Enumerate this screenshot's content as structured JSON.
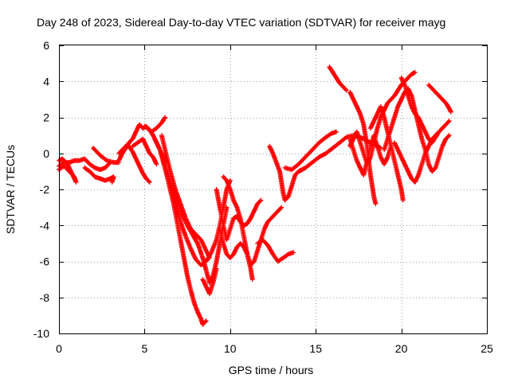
{
  "chart_data": {
    "type": "scatter",
    "title": "Day 248 of 2023, Sidereal Day-to-day VTEC variation (SDTVAR) for receiver mayg",
    "xlabel": "GPS time / hours",
    "ylabel": "SDTVAR / TECUs",
    "xlim": [
      0,
      25
    ],
    "ylim": [
      -10,
      6
    ],
    "xticks": [
      0,
      5,
      10,
      15,
      20,
      25
    ],
    "yticks": [
      -10,
      -8,
      -6,
      -4,
      -2,
      0,
      2,
      4,
      6
    ],
    "grid": true,
    "legend": "none",
    "marker": "plus",
    "color": "#ff0000",
    "tracks": [
      [
        [
          0.0,
          -0.7
        ],
        [
          0.3,
          -0.5
        ],
        [
          0.6,
          -0.5
        ],
        [
          0.9,
          -0.4
        ],
        [
          1.2,
          -0.4
        ],
        [
          1.5,
          -0.3
        ],
        [
          1.8,
          -0.6
        ],
        [
          2.1,
          -0.8
        ],
        [
          2.4,
          -0.9
        ],
        [
          2.7,
          -0.8
        ],
        [
          3.0,
          -0.5
        ]
      ],
      [
        [
          0.0,
          -0.9
        ],
        [
          0.3,
          -0.7
        ],
        [
          0.6,
          -1.0
        ],
        [
          0.9,
          -1.3
        ],
        [
          1.0,
          -1.6
        ],
        [
          0.8,
          -1.2
        ],
        [
          0.5,
          -0.6
        ],
        [
          0.2,
          -0.3
        ],
        [
          0.0,
          -0.4
        ]
      ],
      [
        [
          1.5,
          -0.8
        ],
        [
          1.8,
          -1.0
        ],
        [
          2.1,
          -1.3
        ],
        [
          2.4,
          -1.4
        ],
        [
          2.7,
          -1.5
        ],
        [
          3.0,
          -1.4
        ],
        [
          3.2,
          -1.3
        ],
        [
          3.1,
          -1.6
        ]
      ],
      [
        [
          2.0,
          0.3
        ],
        [
          2.4,
          -0.1
        ],
        [
          2.8,
          -0.4
        ],
        [
          3.2,
          -0.5
        ],
        [
          3.5,
          -0.5
        ]
      ],
      [
        [
          3.5,
          -0.4
        ],
        [
          3.7,
          0.0
        ],
        [
          3.9,
          0.3
        ],
        [
          4.1,
          0.6
        ],
        [
          4.3,
          0.8
        ],
        [
          4.5,
          1.2
        ],
        [
          4.7,
          1.6
        ],
        [
          4.9,
          1.4
        ],
        [
          5.1,
          1.5
        ],
        [
          5.4,
          1.2
        ],
        [
          5.7,
          1.4
        ],
        [
          6.0,
          1.7
        ],
        [
          6.2,
          2.0
        ]
      ],
      [
        [
          3.5,
          0.0
        ],
        [
          3.8,
          0.3
        ],
        [
          4.0,
          0.5
        ],
        [
          4.3,
          0.1
        ],
        [
          4.5,
          -0.3
        ],
        [
          4.7,
          -0.7
        ],
        [
          4.9,
          -1.1
        ],
        [
          5.1,
          -1.4
        ],
        [
          5.3,
          -1.6
        ]
      ],
      [
        [
          4.3,
          0.4
        ],
        [
          4.6,
          0.6
        ],
        [
          4.9,
          0.8
        ],
        [
          5.1,
          0.4
        ],
        [
          5.3,
          0.0
        ],
        [
          5.5,
          -0.2
        ],
        [
          5.7,
          -0.6
        ]
      ],
      [
        [
          5.0,
          1.5
        ],
        [
          5.3,
          1.3
        ],
        [
          5.5,
          1.0
        ],
        [
          5.7,
          0.6
        ],
        [
          5.9,
          0.2
        ],
        [
          6.1,
          -0.5
        ],
        [
          6.3,
          -1.2
        ],
        [
          6.5,
          -2.0
        ],
        [
          6.7,
          -2.8
        ],
        [
          6.9,
          -3.8
        ],
        [
          7.1,
          -4.8
        ],
        [
          7.3,
          -5.8
        ],
        [
          7.5,
          -6.8
        ],
        [
          7.7,
          -7.6
        ],
        [
          7.9,
          -8.3
        ],
        [
          8.1,
          -8.8
        ],
        [
          8.3,
          -9.2
        ],
        [
          8.4,
          -9.5
        ],
        [
          8.6,
          -9.3
        ]
      ],
      [
        [
          5.6,
          0.8
        ],
        [
          5.9,
          0.2
        ],
        [
          6.2,
          -0.6
        ],
        [
          6.5,
          -1.6
        ],
        [
          6.8,
          -2.7
        ],
        [
          7.1,
          -3.8
        ],
        [
          7.4,
          -4.6
        ],
        [
          7.7,
          -5.3
        ],
        [
          8.0,
          -5.9
        ],
        [
          8.3,
          -6.2
        ],
        [
          8.6,
          -6.0
        ],
        [
          8.9,
          -5.5
        ],
        [
          9.2,
          -4.8
        ],
        [
          9.4,
          -4.0
        ],
        [
          9.6,
          -3.0
        ],
        [
          9.8,
          -2.0
        ],
        [
          10.0,
          -1.5
        ]
      ],
      [
        [
          6.0,
          1.0
        ],
        [
          6.3,
          -0.2
        ],
        [
          6.6,
          -1.4
        ],
        [
          6.9,
          -2.6
        ],
        [
          7.2,
          -3.4
        ],
        [
          7.5,
          -4.0
        ],
        [
          7.8,
          -4.5
        ],
        [
          8.1,
          -5.0
        ],
        [
          8.4,
          -5.8
        ],
        [
          8.6,
          -6.5
        ],
        [
          8.8,
          -7.2
        ],
        [
          9.0,
          -6.8
        ],
        [
          9.2,
          -6.0
        ],
        [
          9.4,
          -5.0
        ],
        [
          9.6,
          -4.0
        ],
        [
          9.8,
          -3.0
        ]
      ],
      [
        [
          6.2,
          0.0
        ],
        [
          6.5,
          -1.0
        ],
        [
          6.8,
          -2.0
        ],
        [
          7.1,
          -2.8
        ],
        [
          7.4,
          -3.6
        ],
        [
          7.7,
          -4.2
        ],
        [
          8.0,
          -4.5
        ],
        [
          8.3,
          -4.8
        ],
        [
          8.6,
          -5.4
        ],
        [
          8.8,
          -5.8
        ]
      ],
      [
        [
          8.4,
          -7.0
        ],
        [
          8.6,
          -7.4
        ],
        [
          8.8,
          -7.8
        ],
        [
          9.0,
          -7.2
        ],
        [
          9.2,
          -6.4
        ]
      ],
      [
        [
          9.2,
          -2.0
        ],
        [
          9.4,
          -3.0
        ],
        [
          9.6,
          -4.0
        ],
        [
          9.8,
          -4.8
        ],
        [
          10.0,
          -4.2
        ],
        [
          10.2,
          -3.6
        ],
        [
          10.4,
          -3.5
        ],
        [
          10.6,
          -3.8
        ],
        [
          10.8,
          -4.0
        ],
        [
          11.0,
          -3.9
        ],
        [
          11.2,
          -3.6
        ],
        [
          11.4,
          -3.2
        ],
        [
          11.6,
          -2.8
        ],
        [
          11.8,
          -2.6
        ]
      ],
      [
        [
          9.6,
          -1.3
        ],
        [
          9.8,
          -1.5
        ],
        [
          10.0,
          -2.0
        ],
        [
          10.2,
          -2.6
        ],
        [
          10.4,
          -3.0
        ],
        [
          10.6,
          -3.6
        ],
        [
          10.8,
          -4.6
        ],
        [
          11.0,
          -5.6
        ],
        [
          11.2,
          -6.2
        ],
        [
          11.4,
          -6.0
        ],
        [
          11.6,
          -5.4
        ],
        [
          11.8,
          -4.8
        ],
        [
          12.0,
          -4.2
        ],
        [
          12.2,
          -3.8
        ],
        [
          12.5,
          -3.5
        ],
        [
          12.8,
          -3.2
        ],
        [
          13.0,
          -3.0
        ]
      ],
      [
        [
          9.4,
          -4.2
        ],
        [
          9.6,
          -5.0
        ],
        [
          9.8,
          -5.6
        ],
        [
          10.0,
          -5.8
        ],
        [
          10.2,
          -5.6
        ],
        [
          10.4,
          -5.2
        ],
        [
          10.6,
          -5.0
        ],
        [
          10.8,
          -5.2
        ],
        [
          11.0,
          -5.6
        ],
        [
          11.2,
          -6.4
        ],
        [
          11.3,
          -7.0
        ]
      ],
      [
        [
          11.6,
          -5.0
        ],
        [
          11.9,
          -4.8
        ],
        [
          12.2,
          -5.1
        ],
        [
          12.5,
          -5.6
        ],
        [
          12.8,
          -6.0
        ],
        [
          13.1,
          -5.8
        ],
        [
          13.4,
          -5.6
        ],
        [
          13.7,
          -5.5
        ]
      ],
      [
        [
          12.3,
          0.4
        ],
        [
          12.5,
          0.0
        ],
        [
          12.7,
          -0.5
        ],
        [
          12.9,
          -1.0
        ],
        [
          13.0,
          -1.6
        ],
        [
          13.1,
          -2.2
        ],
        [
          13.2,
          -2.6
        ],
        [
          13.4,
          -2.4
        ],
        [
          13.6,
          -1.8
        ],
        [
          13.8,
          -1.2
        ],
        [
          14.0,
          -1.0
        ],
        [
          14.2,
          -0.9
        ]
      ],
      [
        [
          13.2,
          -0.8
        ],
        [
          13.6,
          -0.9
        ],
        [
          14.0,
          -0.6
        ],
        [
          14.4,
          -0.2
        ],
        [
          14.8,
          0.2
        ],
        [
          15.2,
          0.6
        ],
        [
          15.6,
          0.9
        ],
        [
          15.9,
          1.1
        ],
        [
          16.2,
          1.2
        ]
      ],
      [
        [
          14.0,
          -1.0
        ],
        [
          14.4,
          -0.8
        ],
        [
          14.8,
          -0.5
        ],
        [
          15.2,
          -0.2
        ],
        [
          15.6,
          0.0
        ],
        [
          16.0,
          0.3
        ],
        [
          16.4,
          0.6
        ],
        [
          16.8,
          0.9
        ],
        [
          17.2,
          1.0
        ],
        [
          17.6,
          0.9
        ],
        [
          18.0,
          0.7
        ],
        [
          18.4,
          0.5
        ],
        [
          18.8,
          0.3
        ]
      ],
      [
        [
          15.8,
          4.8
        ],
        [
          16.0,
          4.5
        ],
        [
          16.2,
          4.2
        ],
        [
          16.4,
          3.9
        ],
        [
          16.6,
          3.7
        ],
        [
          16.8,
          3.5
        ]
      ],
      [
        [
          17.0,
          3.4
        ],
        [
          17.2,
          3.0
        ],
        [
          17.4,
          2.6
        ],
        [
          17.6,
          2.2
        ],
        [
          17.8,
          1.6
        ],
        [
          17.9,
          1.0
        ],
        [
          18.0,
          0.4
        ],
        [
          18.1,
          -0.4
        ],
        [
          18.2,
          -1.2
        ],
        [
          18.3,
          -1.8
        ],
        [
          18.4,
          -2.4
        ],
        [
          18.5,
          -2.8
        ]
      ],
      [
        [
          17.0,
          0.4
        ],
        [
          17.2,
          0.8
        ],
        [
          17.4,
          1.2
        ],
        [
          17.6,
          0.6
        ],
        [
          17.8,
          0.0
        ],
        [
          18.0,
          -0.6
        ],
        [
          18.2,
          -0.2
        ],
        [
          18.4,
          0.6
        ],
        [
          18.6,
          1.4
        ],
        [
          18.8,
          2.0
        ],
        [
          19.0,
          2.4
        ],
        [
          19.2,
          2.8
        ],
        [
          19.4,
          3.0
        ],
        [
          19.6,
          3.2
        ],
        [
          19.8,
          3.5
        ],
        [
          20.0,
          3.8
        ],
        [
          20.2,
          4.0
        ],
        [
          20.4,
          4.2
        ],
        [
          20.6,
          4.4
        ],
        [
          20.8,
          4.5
        ]
      ],
      [
        [
          18.2,
          1.4
        ],
        [
          18.4,
          1.8
        ],
        [
          18.6,
          2.2
        ],
        [
          18.8,
          2.6
        ],
        [
          19.0,
          2.0
        ],
        [
          19.2,
          1.2
        ],
        [
          19.4,
          0.4
        ],
        [
          19.6,
          -0.4
        ],
        [
          19.8,
          -1.2
        ],
        [
          20.0,
          -2.0
        ],
        [
          20.1,
          -2.6
        ]
      ],
      [
        [
          19.0,
          0.2
        ],
        [
          19.2,
          0.8
        ],
        [
          19.4,
          1.4
        ],
        [
          19.6,
          2.0
        ],
        [
          19.8,
          2.6
        ],
        [
          20.0,
          3.0
        ],
        [
          20.2,
          3.4
        ],
        [
          20.4,
          3.6
        ],
        [
          20.6,
          3.2
        ],
        [
          20.8,
          2.4
        ],
        [
          21.0,
          1.6
        ],
        [
          21.2,
          0.8
        ],
        [
          21.4,
          0.2
        ],
        [
          21.6,
          -0.6
        ],
        [
          21.8,
          -1.0
        ],
        [
          22.0,
          -0.8
        ],
        [
          22.2,
          -0.2
        ],
        [
          22.4,
          0.4
        ],
        [
          22.6,
          0.8
        ],
        [
          22.8,
          1.0
        ]
      ],
      [
        [
          20.0,
          4.2
        ],
        [
          20.2,
          3.8
        ],
        [
          20.4,
          3.2
        ],
        [
          20.6,
          2.6
        ],
        [
          20.8,
          2.2
        ],
        [
          21.0,
          2.0
        ],
        [
          21.2,
          1.6
        ],
        [
          21.4,
          1.2
        ],
        [
          21.6,
          0.8
        ],
        [
          21.8,
          0.6
        ],
        [
          22.0,
          0.9
        ],
        [
          22.2,
          1.2
        ],
        [
          22.4,
          1.4
        ],
        [
          22.6,
          1.6
        ],
        [
          22.8,
          1.8
        ]
      ],
      [
        [
          19.6,
          0.6
        ],
        [
          19.8,
          0.2
        ],
        [
          20.0,
          -0.2
        ],
        [
          20.2,
          -0.6
        ],
        [
          20.4,
          -1.0
        ],
        [
          20.6,
          -1.4
        ],
        [
          20.8,
          -1.6
        ],
        [
          21.0,
          -1.2
        ],
        [
          21.2,
          -0.6
        ],
        [
          21.4,
          0.0
        ],
        [
          21.6,
          0.4
        ],
        [
          21.8,
          0.8
        ],
        [
          22.0,
          1.0
        ],
        [
          22.2,
          1.2
        ]
      ],
      [
        [
          21.6,
          3.8
        ],
        [
          21.8,
          3.6
        ],
        [
          22.0,
          3.4
        ],
        [
          22.2,
          3.2
        ],
        [
          22.4,
          3.0
        ],
        [
          22.6,
          2.8
        ],
        [
          22.8,
          2.5
        ],
        [
          22.9,
          2.3
        ]
      ],
      [
        [
          17.0,
          0.8
        ],
        [
          17.2,
          0.2
        ],
        [
          17.4,
          -0.4
        ],
        [
          17.6,
          -0.8
        ],
        [
          17.8,
          -1.2
        ],
        [
          18.0,
          -0.4
        ],
        [
          18.2,
          0.4
        ],
        [
          18.4,
          1.0
        ],
        [
          18.6,
          0.4
        ],
        [
          18.8,
          -0.2
        ],
        [
          19.0,
          -0.6
        ],
        [
          19.2,
          -0.2
        ],
        [
          19.4,
          0.4
        ]
      ]
    ]
  }
}
